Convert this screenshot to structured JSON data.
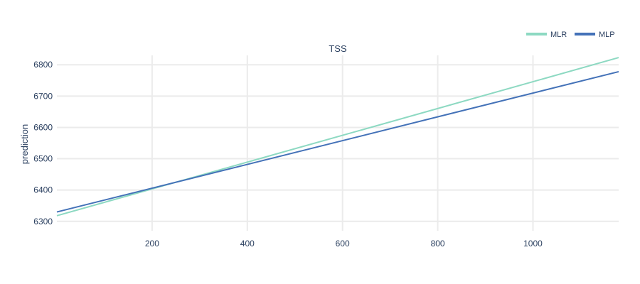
{
  "chart_data": {
    "type": "line",
    "title": "TSS",
    "xlabel": "",
    "ylabel": "prediction",
    "xlim": [
      0,
      1180
    ],
    "ylim": [
      6270,
      6830
    ],
    "xticks": [
      200,
      400,
      600,
      800,
      1000
    ],
    "yticks": [
      6300,
      6400,
      6500,
      6600,
      6700,
      6800
    ],
    "grid": true,
    "legend_position": "top-right",
    "series": [
      {
        "name": "MLR",
        "color": "#8dd9c2",
        "x": [
          0,
          1180
        ],
        "y": [
          6318,
          6823
        ]
      },
      {
        "name": "MLP",
        "color": "#4472b8",
        "x": [
          0,
          1180
        ],
        "y": [
          6330,
          6778
        ]
      }
    ]
  }
}
